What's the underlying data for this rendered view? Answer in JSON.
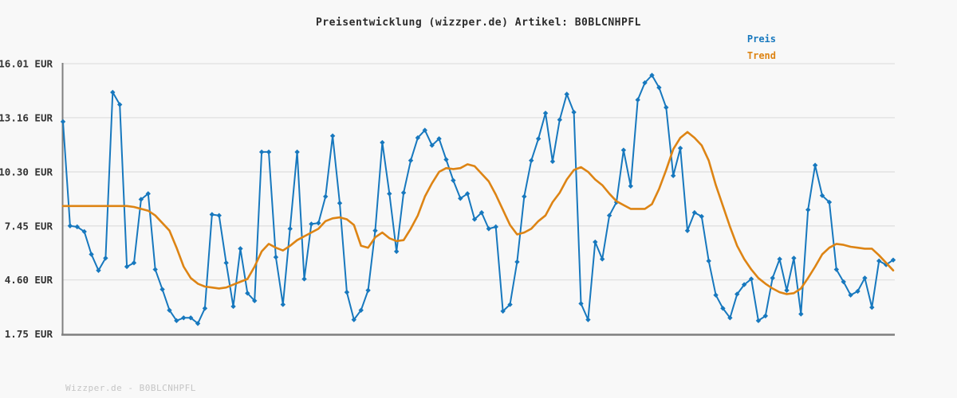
{
  "header": {
    "title": "Preisentwicklung (wizzper.de) Artikel: B0BLCNHPFL"
  },
  "legend": {
    "items": [
      {
        "label": "Preis",
        "color": "#1778be"
      },
      {
        "label": "Trend",
        "color": "#dd8414"
      }
    ]
  },
  "watermark": "Wizzper.de - B0BLCNHPFL",
  "colors": {
    "background": "#f8f8f8",
    "grid": "#e0e0e0",
    "axis": "#7f7f7f",
    "tick_text": "#333333",
    "title_text": "#2b2b2b",
    "watermark_text": "#c5c5c5",
    "price": "#1778be",
    "trend": "#dd8414"
  },
  "chart_data": {
    "type": "line",
    "title": "Preisentwicklung (wizzper.de) Artikel: B0BLCNHPFL",
    "xlabel": "",
    "ylabel": "EUR",
    "ylim": [
      1.75,
      16.01
    ],
    "grid": true,
    "legend_position": "top-right",
    "x_tick_labels_visible": false,
    "y_ticks": [
      {
        "label": "16.01 EUR",
        "value": 16.01
      },
      {
        "label": "13.16 EUR",
        "value": 13.16
      },
      {
        "label": "10.30 EUR",
        "value": 10.3
      },
      {
        "label": "7.45 EUR",
        "value": 7.45
      },
      {
        "label": "4.60 EUR",
        "value": 4.6
      },
      {
        "label": "1.75 EUR",
        "value": 1.75
      }
    ],
    "series": [
      {
        "name": "Preis",
        "color": "#1778be",
        "marker": "diamond",
        "values": [
          12.95,
          7.45,
          7.4,
          7.15,
          5.95,
          5.1,
          5.75,
          14.5,
          13.85,
          5.3,
          5.5,
          8.85,
          9.15,
          5.15,
          4.1,
          3.0,
          2.45,
          2.6,
          2.6,
          2.3,
          3.1,
          8.05,
          8.0,
          5.5,
          3.2,
          6.25,
          3.9,
          3.5,
          11.35,
          11.35,
          5.8,
          3.3,
          7.3,
          11.35,
          4.65,
          7.55,
          7.6,
          9.0,
          12.2,
          8.65,
          3.95,
          2.5,
          3.0,
          4.05,
          7.2,
          11.85,
          9.15,
          6.1,
          9.2,
          10.9,
          12.1,
          12.5,
          11.7,
          12.05,
          10.95,
          9.85,
          8.9,
          9.15,
          7.8,
          8.15,
          7.3,
          7.4,
          2.95,
          3.3,
          5.55,
          9.0,
          10.9,
          12.05,
          13.4,
          10.85,
          13.05,
          14.4,
          13.45,
          3.35,
          2.5,
          6.6,
          5.7,
          8.0,
          8.7,
          11.45,
          9.55,
          14.1,
          15.0,
          15.4,
          14.75,
          13.7,
          10.1,
          11.55,
          7.2,
          8.15,
          7.95,
          5.6,
          3.8,
          3.1,
          2.6,
          3.85,
          4.35,
          4.65,
          2.45,
          2.7,
          4.7,
          5.7,
          4.05,
          5.75,
          2.8,
          8.3,
          10.65,
          9.05,
          8.7,
          5.15,
          4.5,
          3.8,
          4.0,
          4.7,
          3.15,
          5.6,
          5.4,
          5.65
        ]
      },
      {
        "name": "Trend",
        "color": "#dd8414",
        "marker": "none",
        "values": [
          8.5,
          8.5,
          8.5,
          8.5,
          8.5,
          8.5,
          8.5,
          8.5,
          8.5,
          8.5,
          8.45,
          8.35,
          8.25,
          8.0,
          7.6,
          7.2,
          6.3,
          5.3,
          4.7,
          4.4,
          4.25,
          4.2,
          4.15,
          4.2,
          4.35,
          4.5,
          4.65,
          5.3,
          6.1,
          6.5,
          6.3,
          6.15,
          6.4,
          6.7,
          6.9,
          7.1,
          7.3,
          7.7,
          7.85,
          7.9,
          7.8,
          7.5,
          6.4,
          6.3,
          6.85,
          7.1,
          6.8,
          6.65,
          6.7,
          7.3,
          8.0,
          9.0,
          9.7,
          10.3,
          10.5,
          10.45,
          10.5,
          10.7,
          10.6,
          10.2,
          9.8,
          9.1,
          8.3,
          7.5,
          7.0,
          7.1,
          7.3,
          7.7,
          8.0,
          8.7,
          9.2,
          9.9,
          10.4,
          10.55,
          10.3,
          9.9,
          9.6,
          9.15,
          8.75,
          8.55,
          8.35,
          8.35,
          8.35,
          8.6,
          9.4,
          10.4,
          11.5,
          12.1,
          12.4,
          12.1,
          11.7,
          10.9,
          9.6,
          8.5,
          7.4,
          6.4,
          5.7,
          5.15,
          4.7,
          4.4,
          4.15,
          3.95,
          3.85,
          3.9,
          4.15,
          4.7,
          5.3,
          5.95,
          6.3,
          6.5,
          6.45,
          6.35,
          6.3,
          6.25,
          6.25,
          5.9,
          5.5,
          5.1
        ]
      }
    ]
  }
}
